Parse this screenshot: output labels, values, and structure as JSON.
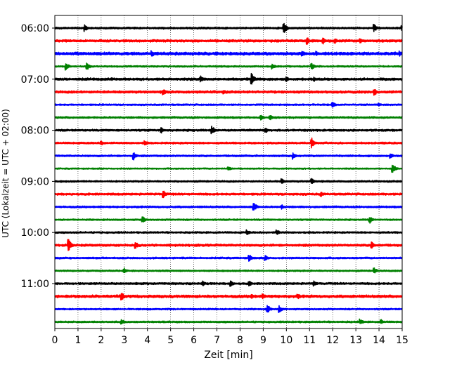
{
  "chart_data": {
    "type": "line",
    "subtype": "helicorder",
    "xlabel": "Zeit  [min]",
    "ylabel": "UTC (Lokalzeit = UTC + 02:00)",
    "xlim": [
      0,
      15
    ],
    "x_ticks": [
      0,
      1,
      2,
      3,
      4,
      5,
      6,
      7,
      8,
      9,
      10,
      11,
      12,
      13,
      14,
      15
    ],
    "x_tick_labels": [
      "0",
      "1",
      "2",
      "3",
      "4",
      "5",
      "6",
      "7",
      "8",
      "9",
      "10",
      "11",
      "12",
      "13",
      "14",
      "15"
    ],
    "grid": "vertical dotted at each minute",
    "y_tick_labels": [
      "06:00",
      "07:00",
      "08:00",
      "09:00",
      "10:00",
      "11:00"
    ],
    "minutes_per_trace": 15,
    "trace_colors": [
      "#000000",
      "#ff0000",
      "#0000ff",
      "#008000"
    ],
    "traces": [
      {
        "color": "#000000",
        "noise": 0.14,
        "events": [
          [
            1.3,
            0.55
          ],
          [
            9.9,
            0.9
          ],
          [
            13.8,
            0.6
          ],
          [
            15.0,
            0.4
          ]
        ]
      },
      {
        "color": "#ff0000",
        "noise": 0.18,
        "events": [
          [
            10.9,
            0.6
          ],
          [
            11.6,
            0.55
          ],
          [
            12.1,
            0.45
          ],
          [
            13.2,
            0.4
          ]
        ]
      },
      {
        "color": "#0000ff",
        "noise": 0.22,
        "events": [
          [
            4.2,
            0.5
          ],
          [
            10.7,
            0.45
          ],
          [
            11.3,
            0.4
          ],
          [
            14.9,
            0.45
          ]
        ]
      },
      {
        "color": "#008000",
        "noise": 0.12,
        "events": [
          [
            0.5,
            0.6
          ],
          [
            1.4,
            0.6
          ],
          [
            9.4,
            0.5
          ],
          [
            11.1,
            0.55
          ]
        ]
      },
      {
        "color": "#000000",
        "noise": 0.18,
        "events": [
          [
            6.3,
            0.5
          ],
          [
            8.5,
            1.0
          ],
          [
            10.0,
            0.45
          ],
          [
            11.2,
            0.4
          ]
        ]
      },
      {
        "color": "#ff0000",
        "noise": 0.18,
        "events": [
          [
            4.7,
            0.45
          ],
          [
            7.3,
            0.4
          ],
          [
            13.8,
            0.6
          ]
        ]
      },
      {
        "color": "#0000ff",
        "noise": 0.12,
        "events": [
          [
            12.0,
            0.55
          ],
          [
            14.0,
            0.3
          ]
        ]
      },
      {
        "color": "#008000",
        "noise": 0.14,
        "events": [
          [
            8.9,
            0.5
          ],
          [
            9.3,
            0.45
          ]
        ]
      },
      {
        "color": "#000000",
        "noise": 0.15,
        "events": [
          [
            4.6,
            0.5
          ],
          [
            6.8,
            0.7
          ],
          [
            9.1,
            0.5
          ]
        ]
      },
      {
        "color": "#ff0000",
        "noise": 0.14,
        "events": [
          [
            2.0,
            0.4
          ],
          [
            3.9,
            0.45
          ],
          [
            11.1,
            0.8
          ]
        ]
      },
      {
        "color": "#0000ff",
        "noise": 0.13,
        "events": [
          [
            3.4,
            0.7
          ],
          [
            10.3,
            0.55
          ],
          [
            14.5,
            0.5
          ]
        ]
      },
      {
        "color": "#008000",
        "noise": 0.1,
        "events": [
          [
            7.5,
            0.35
          ],
          [
            14.6,
            0.7
          ]
        ]
      },
      {
        "color": "#000000",
        "noise": 0.13,
        "events": [
          [
            9.8,
            0.45
          ],
          [
            11.1,
            0.5
          ]
        ]
      },
      {
        "color": "#ff0000",
        "noise": 0.16,
        "events": [
          [
            4.7,
            0.6
          ],
          [
            11.5,
            0.4
          ]
        ]
      },
      {
        "color": "#0000ff",
        "noise": 0.14,
        "events": [
          [
            8.6,
            0.75
          ],
          [
            9.8,
            0.4
          ]
        ]
      },
      {
        "color": "#008000",
        "noise": 0.12,
        "events": [
          [
            3.8,
            0.5
          ],
          [
            13.6,
            0.6
          ]
        ]
      },
      {
        "color": "#000000",
        "noise": 0.13,
        "events": [
          [
            8.3,
            0.45
          ],
          [
            9.6,
            0.45
          ]
        ]
      },
      {
        "color": "#ff0000",
        "noise": 0.17,
        "events": [
          [
            0.6,
            1.0
          ],
          [
            3.5,
            0.55
          ],
          [
            13.7,
            0.6
          ]
        ]
      },
      {
        "color": "#0000ff",
        "noise": 0.13,
        "events": [
          [
            8.4,
            0.6
          ],
          [
            9.1,
            0.45
          ]
        ]
      },
      {
        "color": "#008000",
        "noise": 0.12,
        "events": [
          [
            3.0,
            0.45
          ],
          [
            13.8,
            0.5
          ]
        ]
      },
      {
        "color": "#000000",
        "noise": 0.15,
        "events": [
          [
            6.4,
            0.4
          ],
          [
            7.6,
            0.55
          ],
          [
            8.4,
            0.45
          ],
          [
            11.2,
            0.45
          ]
        ]
      },
      {
        "color": "#ff0000",
        "noise": 0.2,
        "events": [
          [
            2.9,
            0.6
          ],
          [
            8.5,
            0.4
          ],
          [
            9.0,
            0.45
          ],
          [
            10.5,
            0.45
          ]
        ]
      },
      {
        "color": "#0000ff",
        "noise": 0.12,
        "events": [
          [
            9.2,
            0.65
          ],
          [
            9.7,
            0.55
          ]
        ]
      },
      {
        "color": "#008000",
        "noise": 0.13,
        "events": [
          [
            2.9,
            0.4
          ],
          [
            13.2,
            0.45
          ],
          [
            14.1,
            0.4
          ]
        ]
      }
    ]
  }
}
